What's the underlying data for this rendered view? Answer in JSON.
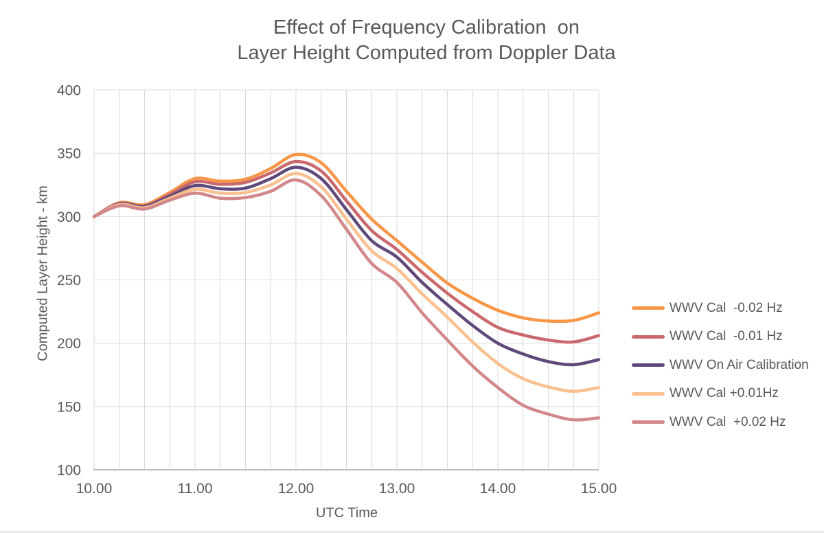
{
  "page": {
    "background": "#FFFFFF"
  },
  "chart_data": {
    "type": "line",
    "title_lines": [
      "Effect of Frequency Calibration  on",
      "Layer Height Computed from Doppler Data"
    ],
    "xlabel": "UTC Time",
    "ylabel": "Computed Layer Height - km",
    "xlim": [
      10,
      15
    ],
    "ylim": [
      100,
      400
    ],
    "grid": true,
    "x_minor_step": 0.25,
    "y_step": 50,
    "x_tick_values": [
      10,
      11,
      12,
      13,
      14,
      15
    ],
    "x_tick_labels": [
      "10.00",
      "11.00",
      "12.00",
      "13.00",
      "14.00",
      "15.00"
    ],
    "y_tick_values": [
      400,
      350,
      300,
      250,
      200,
      150,
      100
    ],
    "y_tick_labels": [
      "400",
      "350",
      "300",
      "250",
      "200",
      "150",
      "100"
    ],
    "legend_position": "right",
    "x": [
      10,
      10.25,
      10.5,
      10.75,
      11,
      11.25,
      11.5,
      11.75,
      12,
      12.25,
      12.5,
      12.75,
      13,
      13.25,
      13.5,
      13.75,
      14,
      14.25,
      14.5,
      14.75,
      15
    ],
    "series": [
      {
        "name": "WWV Cal  -0.02 Hz",
        "color": "#F79646",
        "values": [
          300,
          311,
          309.5,
          319,
          330,
          328,
          329.5,
          338,
          349,
          342.5,
          320,
          298,
          281,
          264,
          247.5,
          235.5,
          226,
          220,
          217.5,
          218,
          224
        ]
      },
      {
        "name": "WWV Cal  -0.01 Hz",
        "color": "#C9696E",
        "values": [
          300,
          310.5,
          308.5,
          317.5,
          327.5,
          325.5,
          327,
          334.5,
          343.5,
          336,
          312.5,
          289,
          274,
          256,
          239.5,
          225,
          212.5,
          206.5,
          202.5,
          201,
          206
        ]
      },
      {
        "name": "WWV On Air Calibration",
        "color": "#5F497A",
        "values": [
          300,
          310,
          308,
          316,
          324.5,
          322,
          322.5,
          330,
          339,
          330,
          305.5,
          281,
          268,
          248,
          230.5,
          214,
          200,
          191.5,
          185.5,
          183,
          187
        ]
      },
      {
        "name": "WWV Cal +0.01Hz",
        "color": "#FAC090",
        "values": [
          300,
          309.5,
          307,
          314.5,
          321.5,
          318.5,
          319,
          325,
          334,
          323.5,
          298,
          273,
          259,
          239,
          220.5,
          201,
          184,
          172,
          165.5,
          162,
          165
        ]
      },
      {
        "name": "WWV Cal  +0.02 Hz",
        "color": "#D2878A",
        "values": [
          300,
          308.5,
          306,
          313,
          318.5,
          314.5,
          315,
          320,
          329,
          316.5,
          290,
          263,
          248,
          224,
          202.5,
          182,
          165,
          151,
          144,
          139.5,
          141
        ]
      }
    ],
    "colors": {
      "grid": "#D9D9D9",
      "axis": "#BFBFBF",
      "text": "#595959"
    }
  }
}
